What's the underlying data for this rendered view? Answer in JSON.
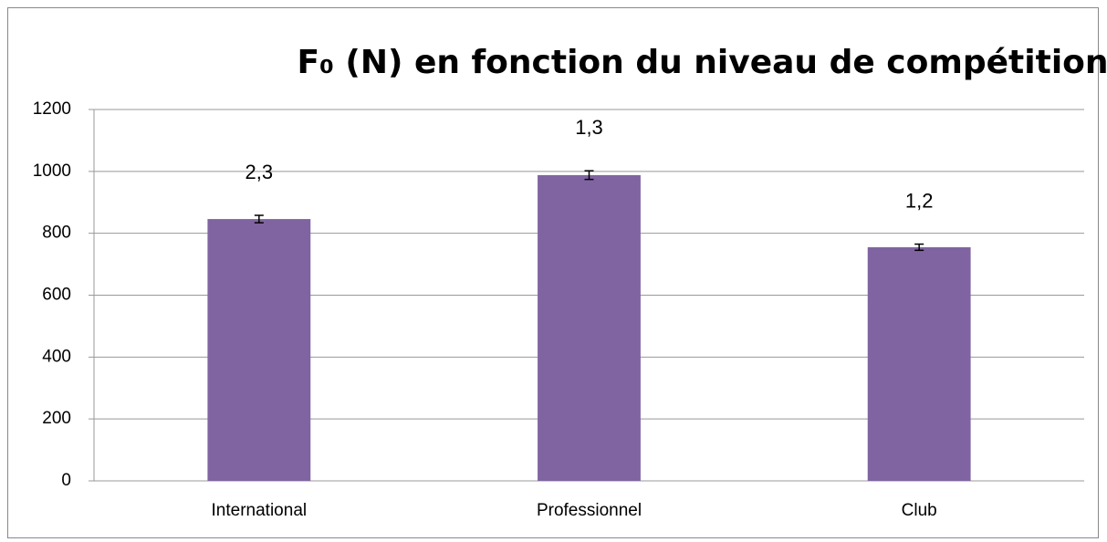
{
  "chart_data": {
    "type": "bar",
    "title": "F₀ (N) en fonction du niveau de compétition",
    "categories": [
      "International",
      "Professionnel",
      "Club"
    ],
    "values": [
      846,
      988,
      755
    ],
    "errors": [
      12,
      14,
      10
    ],
    "annotations": [
      "2,3",
      "1,3",
      "1,2"
    ],
    "color": "#8064a2",
    "ylim": [
      0,
      1200
    ],
    "yticks": [
      0,
      200,
      400,
      600,
      800,
      1000,
      1200
    ],
    "grid": true
  }
}
